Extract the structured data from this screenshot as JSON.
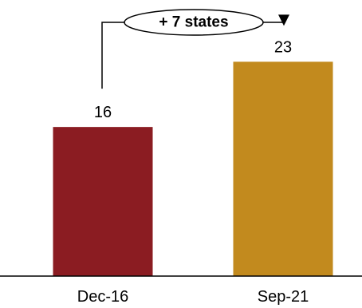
{
  "chart_data": {
    "type": "bar",
    "categories": [
      "Dec-16",
      "Sep-21"
    ],
    "values": [
      16,
      23
    ],
    "data_labels": [
      "16",
      "23"
    ],
    "colors": [
      "#8B1C22",
      "#C28A1E"
    ],
    "ylim": [
      0,
      28
    ],
    "grid": false,
    "legend": "none",
    "annotation": {
      "text": "+ 7 states",
      "from_category": "Dec-16",
      "to_category": "Sep-21"
    }
  }
}
